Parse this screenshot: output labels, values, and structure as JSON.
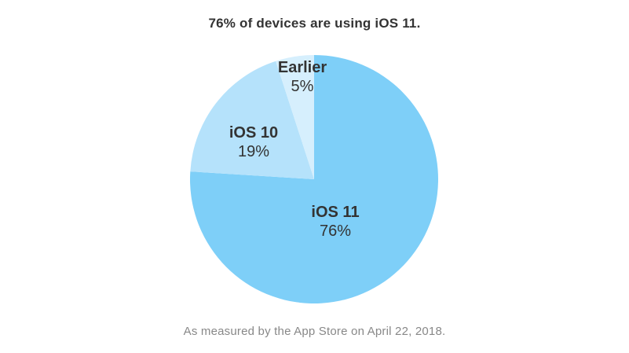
{
  "chart_data": {
    "type": "pie",
    "title": "76% of devices are using iOS 11.",
    "footnote": "As measured by the App Store on April 22, 2018.",
    "slices": [
      {
        "name": "iOS 11",
        "value": 76,
        "label": "76%",
        "color": "#7ecff8"
      },
      {
        "name": "iOS 10",
        "value": 19,
        "label": "19%",
        "color": "#b5e2fb"
      },
      {
        "name": "Earlier",
        "value": 5,
        "label": "5%",
        "color": "#d6effd"
      }
    ]
  }
}
